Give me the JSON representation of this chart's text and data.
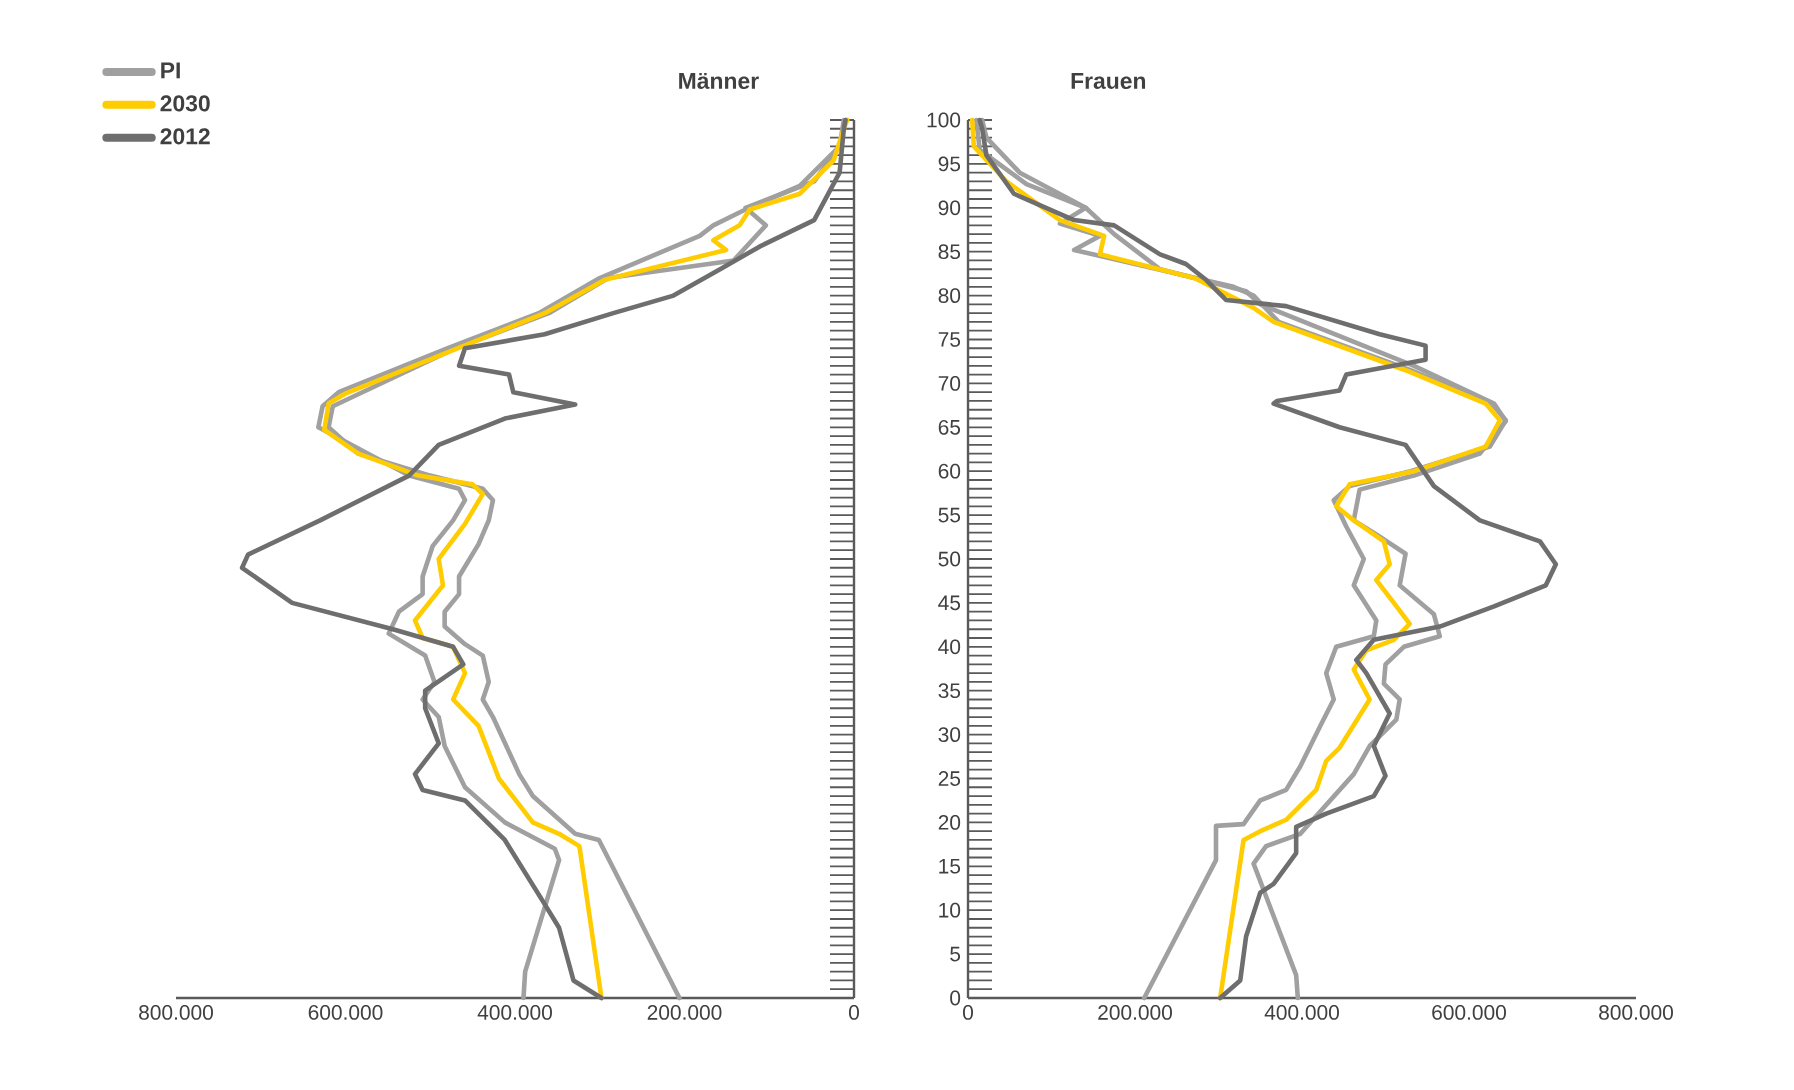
{
  "chart_data": [
    {
      "type": "line",
      "title": "Männer",
      "legend": "top left",
      "tick_labels": "x",
      "xlim": [
        800000,
        0
      ],
      "ylim": [
        0,
        100
      ],
      "xticks": [
        {
          "value": 800000,
          "label": "800.000"
        },
        {
          "value": 600000,
          "label": "600.000"
        },
        {
          "value": 400000,
          "label": "400.000"
        },
        {
          "value": 200000,
          "label": "200.000"
        },
        0
      ],
      "yticks": [
        0,
        1,
        2,
        3,
        4,
        5,
        6,
        7,
        8,
        9,
        10,
        11,
        12,
        13,
        14,
        15,
        16,
        17,
        18,
        19,
        20,
        21,
        22,
        23,
        24,
        25,
        26,
        27,
        28,
        29,
        30,
        31,
        32,
        33,
        34,
        35,
        36,
        37,
        38,
        39,
        40,
        41,
        42,
        43,
        44,
        45,
        46,
        47,
        48,
        49,
        50,
        51,
        52,
        53,
        54,
        55,
        56,
        57,
        58,
        59,
        60,
        61,
        62,
        63,
        64,
        65,
        66,
        67,
        68,
        69,
        70,
        71,
        72,
        73,
        74,
        75,
        76,
        77,
        78,
        79,
        80,
        81,
        82,
        83,
        84,
        85,
        86,
        87,
        88,
        89,
        90,
        91,
        92,
        93,
        94,
        95,
        96,
        97,
        98,
        99,
        100
      ],
      "series": [
        {
          "name": "PI",
          "color": "#a0a0a0",
          "x": [
            206000,
            301000,
            329000,
            379000,
            395000,
            426000,
            438000,
            431000,
            438000,
            459000,
            483000,
            483000,
            466000,
            466000,
            443000,
            431000,
            426000,
            438000,
            500000,
            585000,
            620000,
            615000,
            470000,
            360000,
            290000,
            142000,
            104000,
            128000,
            47000,
            17000,
            10000
          ],
          "values": [
            0,
            18,
            18.7,
            23,
            25.5,
            32,
            34,
            36,
            39,
            40.3,
            42.3,
            44,
            46,
            48,
            51.7,
            54.4,
            56.7,
            58,
            59.5,
            62,
            65,
            67.4,
            74,
            78,
            82,
            84,
            88,
            90,
            93,
            97,
            100
          ]
        },
        {
          "color": "#a0a0a0",
          "x": [
            390000,
            388000,
            348000,
            353000,
            412000,
            459000,
            483000,
            490000,
            509000,
            495000,
            506000,
            549000,
            537000,
            509000,
            509000,
            497000,
            473000,
            459000,
            466000,
            525000,
            632000,
            627000,
            608000,
            480000,
            372000,
            300000,
            182000,
            166000,
            128000,
            64000,
            17000,
            12000
          ],
          "values": [
            0,
            3,
            15.7,
            17,
            20,
            24,
            28.7,
            32,
            34,
            36,
            39,
            41.5,
            44,
            46,
            48,
            51.5,
            54.4,
            56.7,
            58,
            59.5,
            65,
            67.4,
            69,
            74,
            78,
            82,
            86.8,
            88,
            89.8,
            92.5,
            97,
            100
          ]
        },
        {
          "name": "2030",
          "color": "#ffcc00",
          "x": [
            298000,
            324000,
            348000,
            379000,
            419000,
            443000,
            473000,
            459000,
            473000,
            509000,
            518000,
            485000,
            490000,
            459000,
            438000,
            450000,
            514000,
            585000,
            625000,
            620000,
            601000,
            473000,
            365000,
            294000,
            151000,
            166000,
            135000,
            123000,
            64000,
            24000,
            12000,
            8000
          ],
          "values": [
            0,
            17.3,
            18.7,
            20,
            25,
            31,
            34,
            37,
            40,
            41,
            43,
            47,
            50,
            54,
            57.4,
            58.5,
            59.5,
            62,
            64.7,
            67.7,
            68.8,
            73.8,
            78,
            81.8,
            85.2,
            86.3,
            88,
            89.8,
            91.6,
            95.4,
            99,
            100
          ]
        },
        {
          "name": "2012",
          "color": "#6e6e6e",
          "x": [
            298000,
            331000,
            348000,
            367000,
            412000,
            459000,
            509000,
            518000,
            490000,
            506000,
            506000,
            461000,
            473000,
            544000,
            663000,
            722000,
            715000,
            630000,
            525000,
            490000,
            412000,
            329000,
            402000,
            407000,
            466000,
            459000,
            365000,
            284000,
            213000,
            158000,
            111000,
            47000,
            17000,
            12000,
            10000
          ],
          "values": [
            0,
            2,
            8,
            11,
            18,
            22.5,
            23.7,
            25.5,
            29,
            33,
            35,
            38,
            40,
            42,
            45,
            49,
            50.5,
            54.4,
            59.5,
            63,
            66,
            67.6,
            69,
            71,
            72,
            74,
            75.6,
            78,
            80,
            83,
            85.6,
            88.6,
            94,
            99,
            100
          ]
        }
      ]
    },
    {
      "type": "line",
      "title": "Frauen",
      "xlim": [
        0,
        800000
      ],
      "ylim": [
        0,
        100
      ],
      "xticks": [
        0,
        {
          "value": 200000,
          "label": "200.000"
        },
        {
          "value": 400000,
          "label": "400.000"
        },
        {
          "value": 600000,
          "label": "600.000"
        },
        {
          "value": 800000,
          "label": "800.000"
        }
      ],
      "yticks": [
        0,
        {
          "value": 1,
          "label": null
        },
        {
          "value": 2,
          "label": null
        },
        {
          "value": 3,
          "label": null
        },
        {
          "value": 4,
          "label": null
        },
        5,
        {
          "value": 6,
          "label": null
        },
        {
          "value": 7,
          "label": null
        },
        {
          "value": 8,
          "label": null
        },
        {
          "value": 9,
          "label": null
        },
        10,
        {
          "value": 11,
          "label": null
        },
        {
          "value": 12,
          "label": null
        },
        {
          "value": 13,
          "label": null
        },
        {
          "value": 14,
          "label": null
        },
        15,
        {
          "value": 16,
          "label": null
        },
        {
          "value": 17,
          "label": null
        },
        {
          "value": 18,
          "label": null
        },
        {
          "value": 19,
          "label": null
        },
        20,
        {
          "value": 21,
          "label": null
        },
        {
          "value": 22,
          "label": null
        },
        {
          "value": 23,
          "label": null
        },
        {
          "value": 24,
          "label": null
        },
        25,
        {
          "value": 26,
          "label": null
        },
        {
          "value": 27,
          "label": null
        },
        {
          "value": 28,
          "label": null
        },
        {
          "value": 29,
          "label": null
        },
        30,
        {
          "value": 31,
          "label": null
        },
        {
          "value": 32,
          "label": null
        },
        {
          "value": 33,
          "label": null
        },
        {
          "value": 34,
          "label": null
        },
        35,
        {
          "value": 36,
          "label": null
        },
        {
          "value": 37,
          "label": null
        },
        {
          "value": 38,
          "label": null
        },
        {
          "value": 39,
          "label": null
        },
        40,
        {
          "value": 41,
          "label": null
        },
        {
          "value": 42,
          "label": null
        },
        {
          "value": 43,
          "label": null
        },
        {
          "value": 44,
          "label": null
        },
        45,
        {
          "value": 46,
          "label": null
        },
        {
          "value": 47,
          "label": null
        },
        {
          "value": 48,
          "label": null
        },
        {
          "value": 49,
          "label": null
        },
        50,
        {
          "value": 51,
          "label": null
        },
        {
          "value": 52,
          "label": null
        },
        {
          "value": 53,
          "label": null
        },
        {
          "value": 54,
          "label": null
        },
        55,
        {
          "value": 56,
          "label": null
        },
        {
          "value": 57,
          "label": null
        },
        {
          "value": 58,
          "label": null
        },
        {
          "value": 59,
          "label": null
        },
        60,
        {
          "value": 61,
          "label": null
        },
        {
          "value": 62,
          "label": null
        },
        {
          "value": 63,
          "label": null
        },
        {
          "value": 64,
          "label": null
        },
        65,
        {
          "value": 66,
          "label": null
        },
        {
          "value": 67,
          "label": null
        },
        {
          "value": 68,
          "label": null
        },
        {
          "value": 69,
          "label": null
        },
        70,
        {
          "value": 71,
          "label": null
        },
        {
          "value": 72,
          "label": null
        },
        {
          "value": 73,
          "label": null
        },
        {
          "value": 74,
          "label": null
        },
        75,
        {
          "value": 76,
          "label": null
        },
        {
          "value": 77,
          "label": null
        },
        {
          "value": 78,
          "label": null
        },
        {
          "value": 79,
          "label": null
        },
        80,
        {
          "value": 81,
          "label": null
        },
        {
          "value": 82,
          "label": null
        },
        {
          "value": 83,
          "label": null
        },
        {
          "value": 84,
          "label": null
        },
        85,
        {
          "value": 86,
          "label": null
        },
        {
          "value": 87,
          "label": null
        },
        {
          "value": 88,
          "label": null
        },
        {
          "value": 89,
          "label": null
        },
        90,
        {
          "value": 91,
          "label": null
        },
        {
          "value": 92,
          "label": null
        },
        {
          "value": 93,
          "label": null
        },
        {
          "value": 94,
          "label": null
        },
        95,
        {
          "value": 96,
          "label": null
        },
        {
          "value": 97,
          "label": null
        },
        {
          "value": 98,
          "label": null
        },
        {
          "value": 99,
          "label": null
        },
        100
      ],
      "series": [
        {
          "color": "#a0a0a0",
          "x": [
            211000,
            297000,
            297000,
            330000,
            350000,
            381000,
            398000,
            422000,
            438000,
            429000,
            441000,
            486000,
            489000,
            462000,
            474000,
            453000,
            438000,
            457000,
            530000,
            625000,
            644000,
            627000,
            530000,
            372000,
            342000,
            318000,
            127000,
            158000,
            110000,
            141000,
            70000,
            14000,
            10000
          ],
          "values": [
            0,
            15.7,
            19.6,
            19.8,
            22.5,
            23.7,
            26.4,
            31,
            34,
            37,
            40,
            41.2,
            43,
            47,
            50,
            53.7,
            56.7,
            58.3,
            60,
            62.8,
            65.8,
            67.7,
            71.5,
            77,
            80,
            81,
            85.2,
            86.8,
            88.2,
            90,
            92.7,
            96.6,
            100
          ]
        },
        {
          "color": "#a0a0a0",
          "x": [
            395000,
            393000,
            342000,
            357000,
            398000,
            462000,
            481000,
            513000,
            517000,
            498000,
            500000,
            522000,
            565000,
            558000,
            517000,
            524000,
            489000,
            462000,
            469000,
            534000,
            613000,
            644000,
            630000,
            534000,
            350000,
            333000,
            230000,
            175000,
            141000,
            62000,
            22000,
            17000
          ],
          "values": [
            0,
            2.6,
            15.3,
            17.3,
            18.7,
            25.5,
            28.7,
            31.7,
            34,
            35.8,
            38,
            40,
            41.2,
            43.7,
            47,
            50.6,
            52.8,
            54.4,
            57.9,
            59.5,
            62,
            65.7,
            67.7,
            72,
            79,
            80.5,
            83,
            87,
            90,
            94,
            98,
            100
          ]
        },
        {
          "color": "#ffcc00",
          "x": [
            302000,
            330000,
            350000,
            381000,
            417000,
            429000,
            445000,
            481000,
            462000,
            477000,
            510000,
            529000,
            510000,
            489000,
            505000,
            498000,
            462000,
            441000,
            457000,
            534000,
            620000,
            637000,
            620000,
            524000,
            366000,
            342000,
            309000,
            271000,
            158000,
            163000,
            110000,
            46000,
            7000,
            5000
          ],
          "values": [
            0,
            18,
            19,
            20.3,
            23.7,
            27,
            28.5,
            34,
            37.4,
            39.6,
            40.8,
            42.6,
            45,
            47.6,
            49.4,
            52,
            54.4,
            56,
            58.5,
            60,
            62.8,
            65.8,
            67.7,
            71.5,
            77,
            78.6,
            80.2,
            82,
            84.7,
            86.8,
            88.6,
            93,
            97,
            100
          ]
        },
        {
          "color": "#6e6e6e",
          "x": [
            302000,
            326000,
            333000,
            350000,
            366000,
            393000,
            393000,
            429000,
            486000,
            500000,
            486000,
            505000,
            477000,
            465000,
            486000,
            565000,
            630000,
            692000,
            704000,
            685000,
            613000,
            558000,
            524000,
            445000,
            366000,
            370000,
            445000,
            453000,
            548000,
            548000,
            493000,
            381000,
            309000,
            285000,
            261000,
            230000,
            175000,
            127000,
            55000,
            22000,
            17000,
            14000
          ],
          "values": [
            0,
            2,
            7,
            12,
            13,
            16.5,
            19.5,
            21,
            23,
            25.3,
            28.7,
            32.4,
            37,
            38.5,
            40.8,
            42.3,
            44.6,
            47,
            49.4,
            52,
            54.4,
            58.3,
            63,
            65,
            67.7,
            68,
            69.2,
            71,
            72.7,
            74.3,
            75.6,
            78.8,
            79.5,
            81.8,
            83.6,
            84.7,
            88,
            88.6,
            91.6,
            96,
            99,
            100
          ]
        }
      ]
    }
  ]
}
